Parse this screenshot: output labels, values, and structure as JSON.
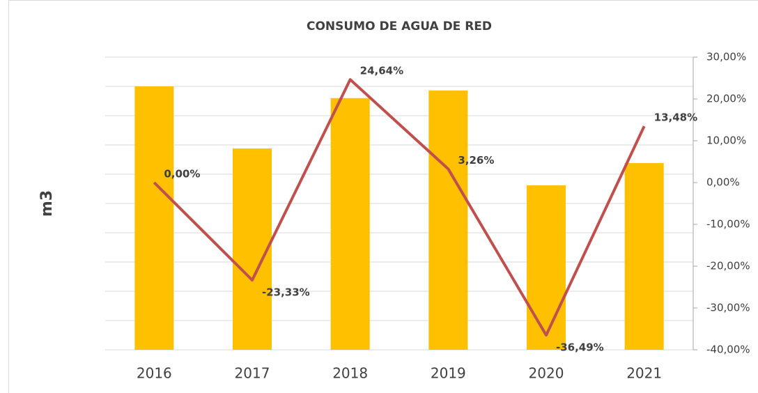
{
  "chart_data": {
    "type": "bar",
    "title": "CONSUMO DE AGUA DE RED",
    "ylabel": "m3",
    "categories": [
      "2016",
      "2017",
      "2018",
      "2019",
      "2020",
      "2021"
    ],
    "series": [
      {
        "type": "bar",
        "color": "#FFC000",
        "values": [
          9.0,
          6.88,
          8.6,
          8.86,
          5.62,
          6.38
        ]
      },
      {
        "type": "line",
        "axis": "y2",
        "color": "#C0504D",
        "values": [
          0,
          -23.33,
          24.64,
          3.26,
          -36.49,
          13.48
        ],
        "value_labels": [
          "0,00%",
          "-23,33%",
          "24,64%",
          "3,26%",
          "-36,49%",
          "13,48%"
        ]
      }
    ],
    "ylim": [
      0,
      10
    ],
    "yticks": [
      0,
      1,
      2,
      3,
      4,
      5,
      6,
      7,
      8,
      9,
      10
    ],
    "y2lim": [
      -40,
      30
    ],
    "y2ticks": [
      {
        "value": -40,
        "label": "-40,00%"
      },
      {
        "value": -30,
        "label": "-30,00%"
      },
      {
        "value": -20,
        "label": "-20,00%"
      },
      {
        "value": -10,
        "label": "-10,00%"
      },
      {
        "value": 0,
        "label": "0,00%"
      },
      {
        "value": 10,
        "label": "10,00%"
      },
      {
        "value": 20,
        "label": "20,00%"
      },
      {
        "value": 30,
        "label": "30,00%"
      }
    ],
    "grid": true
  }
}
